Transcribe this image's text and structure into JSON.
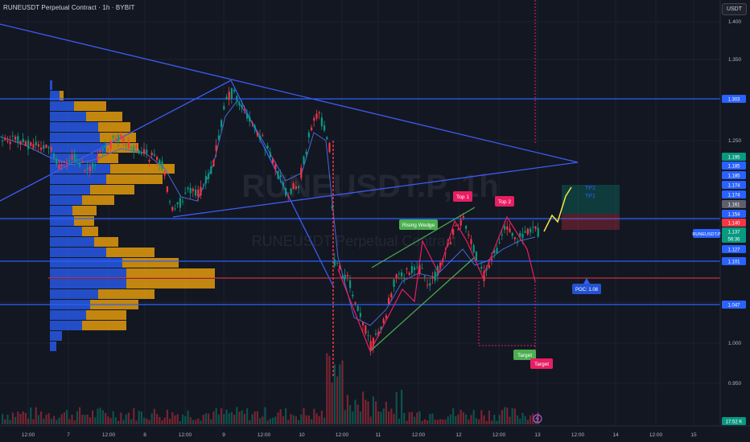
{
  "header": {
    "title": "RUNEUSDT Perpetual Contract · 1h · BYBIT",
    "currency_button": "USDT"
  },
  "watermark": {
    "symbol": "RUNEUSDT.P, 1h",
    "name": "RUNEUSDT Perpetual Contract"
  },
  "price_axis": {
    "ticks": [
      "1.400",
      "1.350",
      "1.250",
      "1.000",
      "0.950"
    ],
    "tags": [
      {
        "label": "1.303",
        "color": "#2962ff"
      },
      {
        "label": "1.195",
        "color": "#089981"
      },
      {
        "label": "1.185",
        "color": "#2962ff"
      },
      {
        "label": "1.185",
        "color": "#2962ff"
      },
      {
        "label": "1.174",
        "color": "#2962ff"
      },
      {
        "label": "1.174",
        "color": "#2962ff"
      },
      {
        "label": "1.161",
        "color": "#5d606b"
      },
      {
        "label": "1.154",
        "color": "#2962ff"
      },
      {
        "label": "1.140",
        "color": "#f23645"
      },
      {
        "label": "1.137",
        "color": "#089981"
      },
      {
        "label": "56:36",
        "color": "#089981"
      },
      {
        "label": "1.127",
        "color": "#2962ff"
      },
      {
        "label": "1.101",
        "color": "#2962ff"
      },
      {
        "label": "1.047",
        "color": "#2962ff"
      },
      {
        "label": "17.52 K",
        "color": "#089981"
      }
    ],
    "symbol_tag": "RUNEUSDT.P"
  },
  "time_axis": {
    "labels": [
      "12:00",
      "7",
      "12:00",
      "8",
      "12:00",
      "9",
      "12:00",
      "10",
      "12:00",
      "11",
      "12:00",
      "12",
      "12:00",
      "13",
      "12:00",
      "14",
      "12:00",
      "15"
    ]
  },
  "annotations": {
    "rising_wedge": "Rising Wedge",
    "top1": "Top 1",
    "top2": "Top 2",
    "target1": "Target",
    "target2": "Target",
    "tp2": "TP2",
    "tp1": "TP1",
    "poc": "POC: 1.08"
  },
  "colors": {
    "background": "#131722",
    "bull": "#089981",
    "bear": "#f23645",
    "line": "#2962ff",
    "vp_blue": "#2962ff",
    "vp_orange": "#f0a30a"
  },
  "chart_data": {
    "type": "candlestick",
    "symbol": "RUNEUSDT.P",
    "timeframe": "1h",
    "exchange": "BYBIT",
    "ylim": [
      0.93,
      1.41
    ],
    "last_price": 1.137,
    "countdown": "56:36",
    "last_volume": "17.52 K",
    "horizontal_levels": [
      1.303,
      1.154,
      1.101,
      1.047
    ],
    "point_of_control": 1.08,
    "take_profit": [
      1.174,
      1.185
    ],
    "stop_zone": [
      1.14,
      1.161
    ]
  }
}
